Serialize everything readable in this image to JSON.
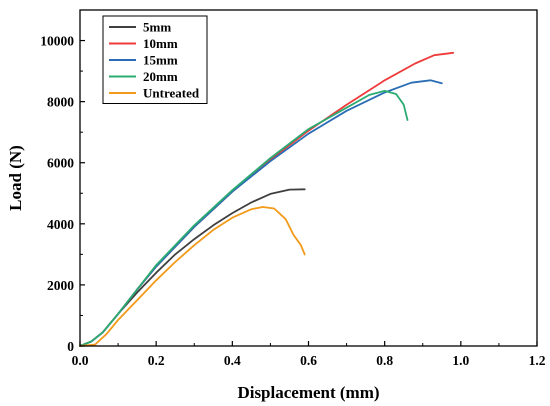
{
  "chart_data": {
    "type": "line",
    "title": "",
    "xlabel": "Displacement (mm)",
    "ylabel": "Load (N)",
    "xlim": [
      0,
      1.2
    ],
    "ylim": [
      0,
      11000
    ],
    "xticks": [
      0.0,
      0.2,
      0.4,
      0.6,
      0.8,
      1.0,
      1.2
    ],
    "xtick_labels": [
      "0.0",
      "0.2",
      "0.4",
      "0.6",
      "0.8",
      "1.0",
      "1.2"
    ],
    "yticks": [
      0,
      2000,
      4000,
      6000,
      8000,
      10000
    ],
    "ytick_labels": [
      "0",
      "2000",
      "4000",
      "6000",
      "8000",
      "10000"
    ],
    "grid": false,
    "legend_position": "top-left",
    "series": [
      {
        "name": "5mm",
        "color": "#3f3f3f",
        "points": [
          [
            0.0,
            0
          ],
          [
            0.03,
            150
          ],
          [
            0.06,
            450
          ],
          [
            0.1,
            1050
          ],
          [
            0.15,
            1750
          ],
          [
            0.2,
            2400
          ],
          [
            0.25,
            3000
          ],
          [
            0.3,
            3500
          ],
          [
            0.35,
            3950
          ],
          [
            0.4,
            4350
          ],
          [
            0.45,
            4700
          ],
          [
            0.5,
            4980
          ],
          [
            0.55,
            5120
          ],
          [
            0.59,
            5130
          ]
        ]
      },
      {
        "name": "10mm",
        "color": "#ee3a3a",
        "points": [
          [
            0.0,
            0
          ],
          [
            0.03,
            150
          ],
          [
            0.06,
            450
          ],
          [
            0.1,
            1050
          ],
          [
            0.15,
            1850
          ],
          [
            0.2,
            2600
          ],
          [
            0.3,
            3900
          ],
          [
            0.4,
            5050
          ],
          [
            0.5,
            6100
          ],
          [
            0.6,
            7050
          ],
          [
            0.7,
            7900
          ],
          [
            0.8,
            8700
          ],
          [
            0.88,
            9250
          ],
          [
            0.93,
            9520
          ],
          [
            0.98,
            9600
          ]
        ]
      },
      {
        "name": "15mm",
        "color": "#2a6db5",
        "points": [
          [
            0.0,
            0
          ],
          [
            0.03,
            150
          ],
          [
            0.06,
            450
          ],
          [
            0.1,
            1050
          ],
          [
            0.15,
            1850
          ],
          [
            0.2,
            2600
          ],
          [
            0.3,
            3900
          ],
          [
            0.4,
            5050
          ],
          [
            0.5,
            6050
          ],
          [
            0.6,
            6950
          ],
          [
            0.7,
            7700
          ],
          [
            0.8,
            8300
          ],
          [
            0.87,
            8620
          ],
          [
            0.92,
            8700
          ],
          [
            0.95,
            8600
          ]
        ]
      },
      {
        "name": "20mm",
        "color": "#2bab72",
        "points": [
          [
            0.0,
            0
          ],
          [
            0.03,
            150
          ],
          [
            0.06,
            450
          ],
          [
            0.1,
            1050
          ],
          [
            0.15,
            1850
          ],
          [
            0.2,
            2650
          ],
          [
            0.3,
            3950
          ],
          [
            0.4,
            5100
          ],
          [
            0.5,
            6150
          ],
          [
            0.6,
            7100
          ],
          [
            0.7,
            7800
          ],
          [
            0.76,
            8220
          ],
          [
            0.8,
            8350
          ],
          [
            0.83,
            8250
          ],
          [
            0.85,
            7900
          ],
          [
            0.86,
            7400
          ]
        ]
      },
      {
        "name": "Untreated",
        "color": "#f39a1a",
        "points": [
          [
            0.0,
            0
          ],
          [
            0.04,
            50
          ],
          [
            0.07,
            400
          ],
          [
            0.1,
            850
          ],
          [
            0.15,
            1500
          ],
          [
            0.2,
            2150
          ],
          [
            0.25,
            2750
          ],
          [
            0.3,
            3300
          ],
          [
            0.35,
            3800
          ],
          [
            0.4,
            4200
          ],
          [
            0.45,
            4480
          ],
          [
            0.48,
            4550
          ],
          [
            0.51,
            4500
          ],
          [
            0.54,
            4150
          ],
          [
            0.56,
            3650
          ],
          [
            0.58,
            3300
          ],
          [
            0.59,
            3000
          ]
        ]
      }
    ]
  }
}
